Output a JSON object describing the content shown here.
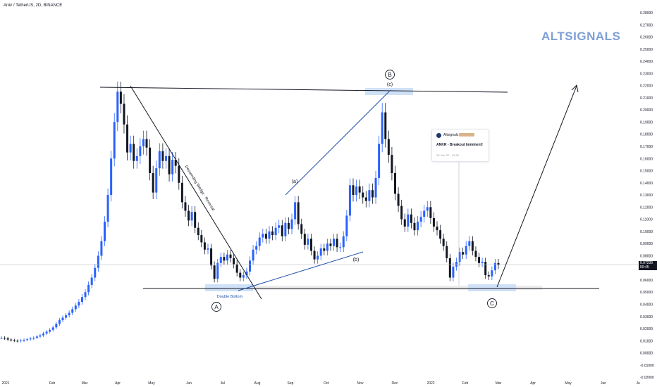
{
  "header": {
    "symbol": "Ankr / TetherUS, 2D, BINANCE"
  },
  "watermark": "ALTSIGNALS",
  "price_tag": {
    "price": "0.07239",
    "countdown": "50:45"
  },
  "idea_popup": {
    "author": "Altsignals",
    "title": "ANKR - Breakout Imminent!",
    "date": "28 Jan '22 · 19:30"
  },
  "annotations": {
    "pattern_label": "Descending Wedge - Reversal",
    "double_bottom": "Double Bottom",
    "wave_A": "A",
    "wave_B": "B",
    "wave_C": "C",
    "wave_a": "(a)",
    "wave_b": "(b)",
    "wave_c": "(c)"
  },
  "colors": {
    "up": "#2962ff",
    "down": "#131722",
    "line": "#131722",
    "blue_line": "#1e4fa8",
    "highlight": "#cfe0f7",
    "axis_text": "#131722"
  },
  "chart_data": {
    "type": "candlestick",
    "y_axis": {
      "ticks": [
        "0.28000",
        "0.27000",
        "0.26000",
        "0.25000",
        "0.24000",
        "0.23000",
        "0.22000",
        "0.21000",
        "0.20000",
        "0.19000",
        "0.18000",
        "0.17000",
        "0.16000",
        "0.15000",
        "0.14000",
        "0.13000",
        "0.12000",
        "0.11000",
        "0.10000",
        "0.09000",
        "0.08000",
        "0.07000",
        "0.06000",
        "0.05000",
        "0.04000",
        "0.03000",
        "0.02000",
        "0.01000",
        "0.00000",
        "-0.01000",
        "-0.02000"
      ],
      "range": [
        -0.0205,
        0.2835
      ]
    },
    "x_axis": {
      "ticks": [
        "2021",
        "Feb",
        "Mar",
        "Apr",
        "May",
        "Jun",
        "Jul",
        "Aug",
        "Sep",
        "Oct",
        "Nov",
        "Dec",
        "2022",
        "Feb",
        "Mar",
        "Apr",
        "May",
        "Jun",
        "Ju"
      ]
    },
    "close_series": [
      0.0125,
      0.012,
      0.011,
      0.0105,
      0.01,
      0.0098,
      0.0102,
      0.0108,
      0.0112,
      0.0118,
      0.0125,
      0.0135,
      0.0145,
      0.016,
      0.0175,
      0.019,
      0.021,
      0.024,
      0.027,
      0.029,
      0.031,
      0.033,
      0.036,
      0.039,
      0.042,
      0.046,
      0.05,
      0.056,
      0.062,
      0.07,
      0.08,
      0.092,
      0.108,
      0.13,
      0.16,
      0.19,
      0.215,
      0.205,
      0.188,
      0.165,
      0.172,
      0.158,
      0.162,
      0.17,
      0.176,
      0.169,
      0.148,
      0.132,
      0.152,
      0.166,
      0.158,
      0.162,
      0.147,
      0.159,
      0.154,
      0.14,
      0.124,
      0.117,
      0.109,
      0.116,
      0.103,
      0.097,
      0.091,
      0.085,
      0.086,
      0.072,
      0.061,
      0.074,
      0.079,
      0.076,
      0.081,
      0.078,
      0.073,
      0.066,
      0.062,
      0.064,
      0.067,
      0.076,
      0.085,
      0.088,
      0.095,
      0.098,
      0.094,
      0.1,
      0.097,
      0.103,
      0.105,
      0.096,
      0.107,
      0.102,
      0.11,
      0.124,
      0.106,
      0.098,
      0.089,
      0.094,
      0.084,
      0.077,
      0.08,
      0.086,
      0.084,
      0.09,
      0.088,
      0.094,
      0.087,
      0.087,
      0.096,
      0.113,
      0.138,
      0.13,
      0.137,
      0.132,
      0.128,
      0.125,
      0.134,
      0.128,
      0.144,
      0.172,
      0.198,
      0.176,
      0.163,
      0.148,
      0.131,
      0.121,
      0.11,
      0.104,
      0.114,
      0.107,
      0.101,
      0.108,
      0.112,
      0.117,
      0.12,
      0.111,
      0.104,
      0.101,
      0.094,
      0.088,
      0.078,
      0.062,
      0.071,
      0.075,
      0.083,
      0.081,
      0.088,
      0.092,
      0.084,
      0.079,
      0.074,
      0.075,
      0.064,
      0.063,
      0.068,
      0.074,
      0.07239
    ],
    "annotations": [
      {
        "text": "A",
        "x": "Jul",
        "y": 0.042
      },
      {
        "text": "B",
        "x": "Nov",
        "y": 0.224
      },
      {
        "text": "C",
        "x": "Feb",
        "y": 0.043
      },
      {
        "text": "(a)",
        "x": "Aug",
        "y": 0.138
      },
      {
        "text": "(b)",
        "x": "Oct",
        "y": 0.075
      },
      {
        "text": "(c)",
        "x": "Nov",
        "y": 0.216
      },
      {
        "text": "Double Bottom",
        "x": "Jul",
        "y": 0.047
      },
      {
        "text": "Descending Wedge - Reversal",
        "x": "May",
        "y": 0.13
      }
    ],
    "grid": false,
    "legend": "none"
  }
}
